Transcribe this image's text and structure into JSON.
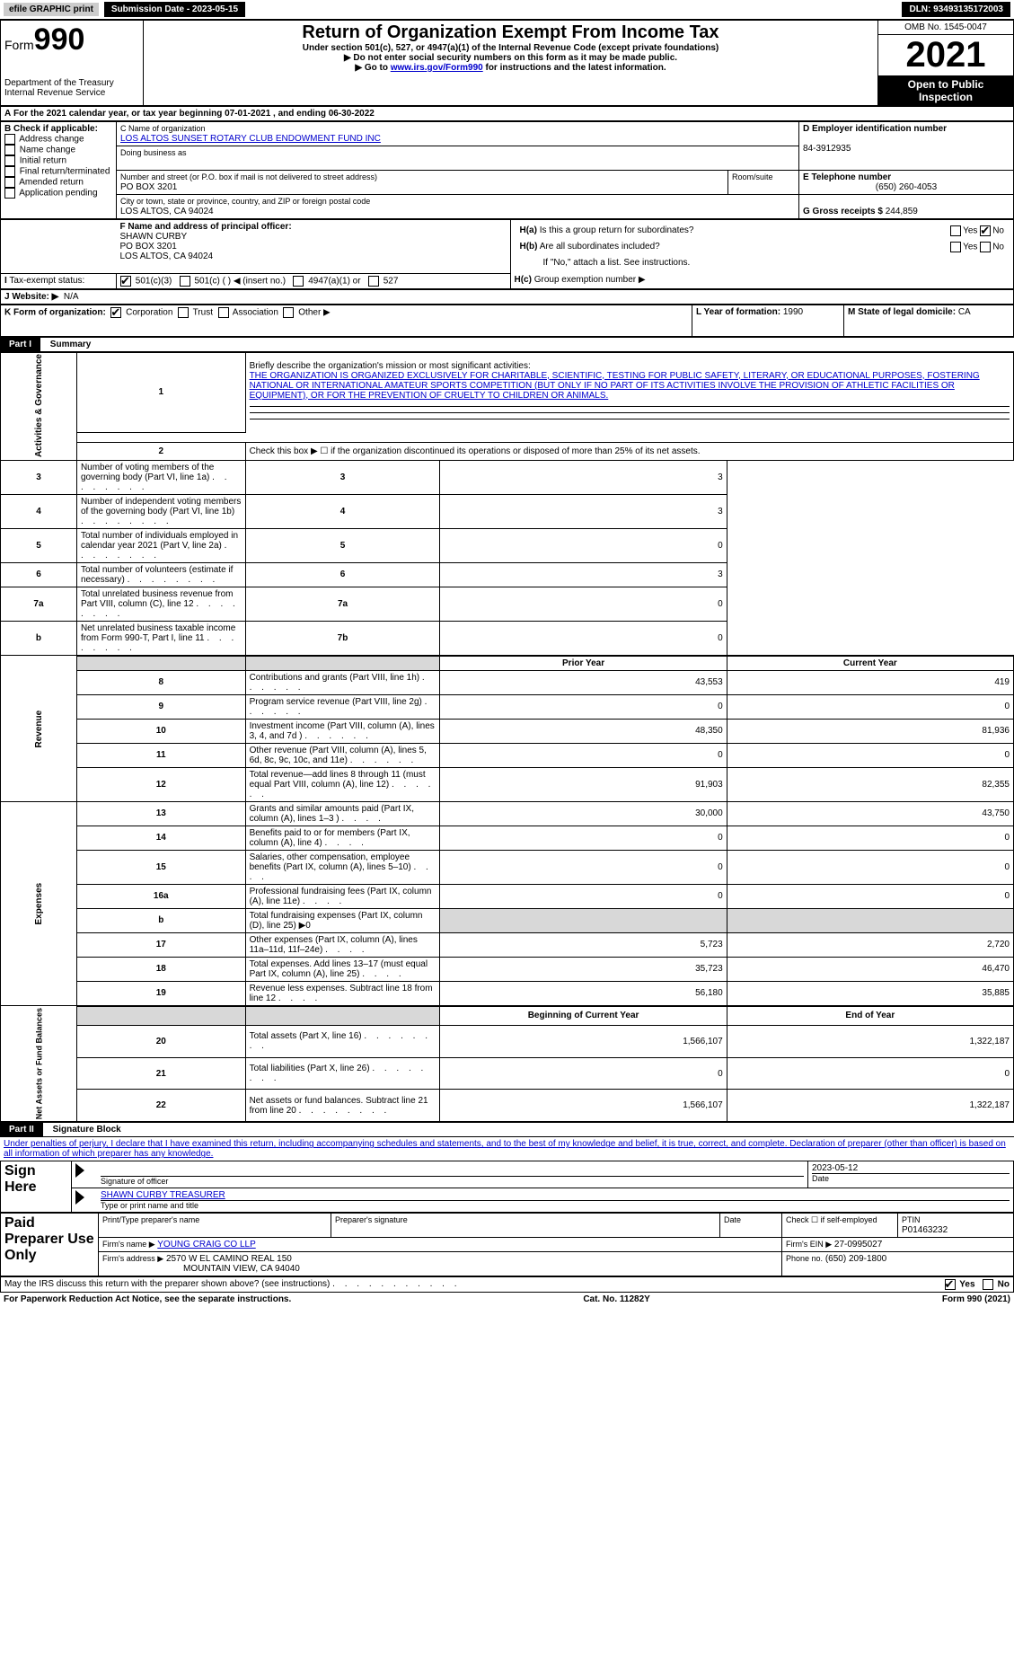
{
  "topbar": {
    "efile_label": "efile GRAPHIC print",
    "submission_label": "Submission Date - 2023-05-15",
    "dln": "DLN: 93493135172003"
  },
  "header": {
    "form_prefix": "Form",
    "form_number": "990",
    "title": "Return of Organization Exempt From Income Tax",
    "subtitle1": "Under section 501(c), 527, or 4947(a)(1) of the Internal Revenue Code (except private foundations)",
    "subtitle2": "▶ Do not enter social security numbers on this form as it may be made public.",
    "subtitle3_pre": "▶ Go to ",
    "subtitle3_link": "www.irs.gov/Form990",
    "subtitle3_post": " for instructions and the latest information.",
    "dept": "Department of the Treasury",
    "irs": "Internal Revenue Service",
    "omb": "OMB No. 1545-0047",
    "year": "2021",
    "open_public": "Open to Public Inspection"
  },
  "section_a": {
    "tax_year": "For the 2021 calendar year, or tax year beginning 07-01-2021    , and ending 06-30-2022"
  },
  "section_b": {
    "label": "B Check if applicable:",
    "items": [
      "Address change",
      "Name change",
      "Initial return",
      "Final return/terminated",
      "Amended return",
      "Application pending"
    ]
  },
  "section_c": {
    "name_label": "C Name of organization",
    "name": "LOS ALTOS SUNSET ROTARY CLUB ENDOWMENT FUND INC",
    "dba_label": "Doing business as",
    "dba": "",
    "street_label": "Number and street (or P.O. box if mail is not delivered to street address)",
    "room_label": "Room/suite",
    "street": "PO BOX 3201",
    "city_label": "City or town, state or province, country, and ZIP or foreign postal code",
    "city": "LOS ALTOS, CA  94024"
  },
  "section_d": {
    "label": "D Employer identification number",
    "ein": "84-3912935"
  },
  "section_e": {
    "label": "E Telephone number",
    "phone": "(650) 260-4053"
  },
  "section_g": {
    "label": "G Gross receipts $",
    "amount": "244,859"
  },
  "section_f": {
    "label": "F Name and address of principal officer:",
    "name": "SHAWN CURBY",
    "street": "PO BOX 3201",
    "city": "LOS ALTOS, CA  94024"
  },
  "section_h": {
    "a_label": "Is this a group return for subordinates?",
    "a_yes": "Yes",
    "a_no": "No",
    "b_label": "Are all subordinates included?",
    "b_yes": "Yes",
    "b_no": "No",
    "b_note": "If \"No,\" attach a list. See instructions.",
    "c_label": "Group exemption number ▶"
  },
  "section_i": {
    "label": "Tax-exempt status:",
    "opts": [
      "501(c)(3)",
      "501(c) (  ) ◀ (insert no.)",
      "4947(a)(1) or",
      "527"
    ]
  },
  "section_j": {
    "label": "Website: ▶",
    "value": "N/A"
  },
  "section_k": {
    "label": "K Form of organization:",
    "opts": [
      "Corporation",
      "Trust",
      "Association",
      "Other ▶"
    ]
  },
  "section_l": {
    "label": "L Year of formation:",
    "value": "1990"
  },
  "section_m": {
    "label": "M State of legal domicile:",
    "value": "CA"
  },
  "part1": {
    "header": "Part I",
    "title": "Summary",
    "line1_label": "Briefly describe the organization's mission or most significant activities:",
    "line1_text": "THE ORGANIZATION IS ORGANIZED EXCLUSIVELY FOR CHARITABLE, SCIENTIFIC, TESTING FOR PUBLIC SAFETY, LITERARY, OR EDUCATIONAL PURPOSES, FOSTERING NATIONAL OR INTERNATIONAL AMATEUR SPORTS COMPETITION (BUT ONLY IF NO PART OF ITS ACTIVITIES INVOLVE THE PROVISION OF ATHLETIC FACILITIES OR EQUIPMENT), OR FOR THE PREVENTION OF CRUELTY TO CHILDREN OR ANIMALS.",
    "line2": "Check this box ▶ ☐ if the organization discontinued its operations or disposed of more than 25% of its net assets.",
    "sidebar_gov": "Activities & Governance",
    "sidebar_rev": "Revenue",
    "sidebar_exp": "Expenses",
    "sidebar_net": "Net Assets or Fund Balances",
    "gov_lines": [
      {
        "num": "3",
        "label": "Number of voting members of the governing body (Part VI, line 1a)",
        "box": "3",
        "val": "3"
      },
      {
        "num": "4",
        "label": "Number of independent voting members of the governing body (Part VI, line 1b)",
        "box": "4",
        "val": "3"
      },
      {
        "num": "5",
        "label": "Total number of individuals employed in calendar year 2021 (Part V, line 2a)",
        "box": "5",
        "val": "0"
      },
      {
        "num": "6",
        "label": "Total number of volunteers (estimate if necessary)",
        "box": "6",
        "val": "3"
      },
      {
        "num": "7a",
        "label": "Total unrelated business revenue from Part VIII, column (C), line 12",
        "box": "7a",
        "val": "0"
      },
      {
        "num": "b",
        "label": "Net unrelated business taxable income from Form 990-T, Part I, line 11",
        "box": "7b",
        "val": "0"
      }
    ],
    "col_prior": "Prior Year",
    "col_current": "Current Year",
    "rev_lines": [
      {
        "num": "8",
        "label": "Contributions and grants (Part VIII, line 1h)",
        "prior": "43,553",
        "current": "419"
      },
      {
        "num": "9",
        "label": "Program service revenue (Part VIII, line 2g)",
        "prior": "0",
        "current": "0"
      },
      {
        "num": "10",
        "label": "Investment income (Part VIII, column (A), lines 3, 4, and 7d )",
        "prior": "48,350",
        "current": "81,936"
      },
      {
        "num": "11",
        "label": "Other revenue (Part VIII, column (A), lines 5, 6d, 8c, 9c, 10c, and 11e)",
        "prior": "0",
        "current": "0"
      },
      {
        "num": "12",
        "label": "Total revenue—add lines 8 through 11 (must equal Part VIII, column (A), line 12)",
        "prior": "91,903",
        "current": "82,355"
      }
    ],
    "exp_lines": [
      {
        "num": "13",
        "label": "Grants and similar amounts paid (Part IX, column (A), lines 1–3 )",
        "prior": "30,000",
        "current": "43,750"
      },
      {
        "num": "14",
        "label": "Benefits paid to or for members (Part IX, column (A), line 4)",
        "prior": "0",
        "current": "0"
      },
      {
        "num": "15",
        "label": "Salaries, other compensation, employee benefits (Part IX, column (A), lines 5–10)",
        "prior": "0",
        "current": "0"
      },
      {
        "num": "16a",
        "label": "Professional fundraising fees (Part IX, column (A), line 11e)",
        "prior": "0",
        "current": "0"
      },
      {
        "num": "b",
        "label": "Total fundraising expenses (Part IX, column (D), line 25) ▶0",
        "prior": "",
        "current": "",
        "grey": true
      },
      {
        "num": "17",
        "label": "Other expenses (Part IX, column (A), lines 11a–11d, 11f–24e)",
        "prior": "5,723",
        "current": "2,720"
      },
      {
        "num": "18",
        "label": "Total expenses. Add lines 13–17 (must equal Part IX, column (A), line 25)",
        "prior": "35,723",
        "current": "46,470"
      },
      {
        "num": "19",
        "label": "Revenue less expenses. Subtract line 18 from line 12",
        "prior": "56,180",
        "current": "35,885"
      }
    ],
    "col_begin": "Beginning of Current Year",
    "col_end": "End of Year",
    "net_lines": [
      {
        "num": "20",
        "label": "Total assets (Part X, line 16)",
        "prior": "1,566,107",
        "current": "1,322,187"
      },
      {
        "num": "21",
        "label": "Total liabilities (Part X, line 26)",
        "prior": "0",
        "current": "0"
      },
      {
        "num": "22",
        "label": "Net assets or fund balances. Subtract line 21 from line 20",
        "prior": "1,566,107",
        "current": "1,322,187"
      }
    ]
  },
  "part2": {
    "header": "Part II",
    "title": "Signature Block",
    "declaration": "Under penalties of perjury, I declare that I have examined this return, including accompanying schedules and statements, and to the best of my knowledge and belief, it is true, correct, and complete. Declaration of preparer (other than officer) is based on all information of which preparer has any knowledge.",
    "sign_here": "Sign Here",
    "sig_officer": "Signature of officer",
    "sig_date": "2023-05-12",
    "date_label": "Date",
    "officer_name": "SHAWN CURBY TREASURER",
    "type_name_label": "Type or print name and title",
    "paid_preparer": "Paid Preparer Use Only",
    "prep_name_label": "Print/Type preparer's name",
    "prep_sig_label": "Preparer's signature",
    "prep_date_label": "Date",
    "prep_check_label": "Check ☐ if self-employed",
    "ptin_label": "PTIN",
    "ptin": "P01463232",
    "firm_name_label": "Firm's name    ▶",
    "firm_name": "YOUNG CRAIG CO LLP",
    "firm_ein_label": "Firm's EIN ▶",
    "firm_ein": "27-0995027",
    "firm_addr_label": "Firm's address ▶",
    "firm_addr1": "2570 W EL CAMINO REAL 150",
    "firm_addr2": "MOUNTAIN VIEW, CA  94040",
    "phone_label": "Phone no.",
    "phone": "(650) 209-1800",
    "discuss": "May the IRS discuss this return with the preparer shown above? (see instructions)",
    "discuss_yes": "Yes",
    "discuss_no": "No"
  },
  "footer": {
    "left": "For Paperwork Reduction Act Notice, see the separate instructions.",
    "center": "Cat. No. 11282Y",
    "right": "Form 990 (2021)"
  }
}
